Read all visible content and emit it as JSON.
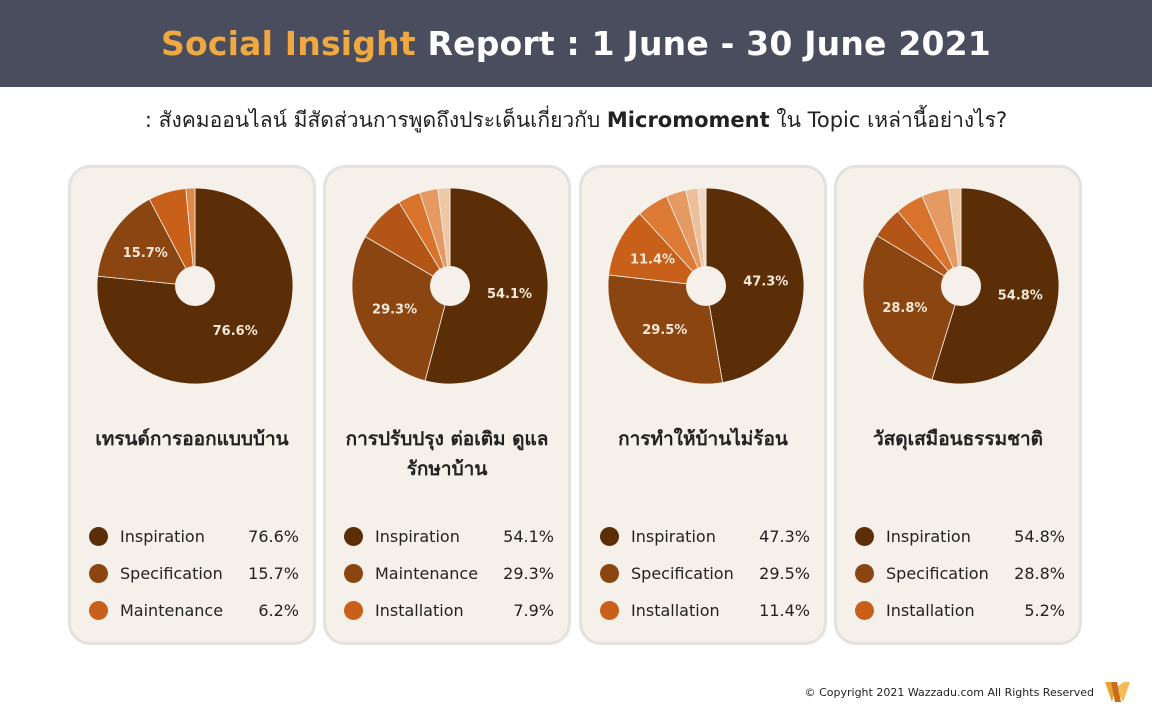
{
  "header": {
    "title_accent": "Social Insight",
    "title_rest": " Report : 1 June - 30 June 2021"
  },
  "subtitle": {
    "prefix": ": สังคมออนไลน์ มีสัดส่วนการพูดถึงประเด็นเกี่ยวกับ ",
    "bold": "Micromoment",
    "suffix": " ใน Topic เหล่านี้อย่างไร?"
  },
  "colors": {
    "header_bg": "#4a4d5e",
    "accent": "#f0a940",
    "card_bg": "#f6f0ea",
    "inspiration": "#5c2e07",
    "series2": "#8b4511",
    "series3": "#c8601a"
  },
  "chart_data": [
    {
      "type": "pie",
      "title": "เทรนด์การออกแบบบ้าน",
      "slices": [
        {
          "name": "Inspiration",
          "value": 76.6,
          "label": "76.6%",
          "color": "#5c2e07"
        },
        {
          "name": "Specification",
          "value": 15.7,
          "label": "15.7%",
          "color": "#8b4511"
        },
        {
          "name": "Maintenance",
          "value": 6.2,
          "label": "",
          "color": "#c8601a"
        },
        {
          "name": "",
          "value": 1.5,
          "label": "",
          "color": "#e0884a"
        }
      ],
      "legend": [
        {
          "name": "Inspiration",
          "value": "76.6%",
          "color": "#5c2e07"
        },
        {
          "name": "Specification",
          "value": "15.7%",
          "color": "#8b4511"
        },
        {
          "name": "Maintenance",
          "value": "6.2%",
          "color": "#c8601a"
        }
      ]
    },
    {
      "type": "pie",
      "title": "การปรับปรุง ต่อเติม ดูแลรักษาบ้าน",
      "slices": [
        {
          "name": "Inspiration",
          "value": 54.1,
          "label": "54.1%",
          "color": "#5c2e07"
        },
        {
          "name": "Maintenance",
          "value": 29.3,
          "label": "29.3%",
          "color": "#8b4511"
        },
        {
          "name": "Installation",
          "value": 7.9,
          "label": "",
          "color": "#b25516"
        },
        {
          "name": "",
          "value": 3.7,
          "label": "",
          "color": "#d9722a"
        },
        {
          "name": "",
          "value": 3.0,
          "label": "",
          "color": "#e59a63"
        },
        {
          "name": "",
          "value": 2.0,
          "label": "",
          "color": "#eec7a6"
        }
      ],
      "legend": [
        {
          "name": "Inspiration",
          "value": "54.1%",
          "color": "#5c2e07"
        },
        {
          "name": "Maintenance",
          "value": "29.3%",
          "color": "#8b4511"
        },
        {
          "name": "Installation",
          "value": "7.9%",
          "color": "#c8601a"
        }
      ]
    },
    {
      "type": "pie",
      "title": "การทำให้บ้านไม่ร้อน",
      "slices": [
        {
          "name": "Inspiration",
          "value": 47.3,
          "label": "47.3%",
          "color": "#5c2e07"
        },
        {
          "name": "Specification",
          "value": 29.5,
          "label": "29.5%",
          "color": "#8b4511"
        },
        {
          "name": "Installation",
          "value": 11.4,
          "label": "11.4%",
          "color": "#c8601a"
        },
        {
          "name": "",
          "value": 5.2,
          "label": "",
          "color": "#dd7b35"
        },
        {
          "name": "",
          "value": 3.3,
          "label": "",
          "color": "#e59a63"
        },
        {
          "name": "",
          "value": 2.0,
          "label": "",
          "color": "#edc09b"
        },
        {
          "name": "",
          "value": 1.3,
          "label": "",
          "color": "#f3d9c4"
        }
      ],
      "legend": [
        {
          "name": "Inspiration",
          "value": "47.3%",
          "color": "#5c2e07"
        },
        {
          "name": "Specification",
          "value": "29.5%",
          "color": "#8b4511"
        },
        {
          "name": "Installation",
          "value": "11.4%",
          "color": "#c8601a"
        }
      ]
    },
    {
      "type": "pie",
      "title": "วัสดุเสมือนธรรมชาติ",
      "slices": [
        {
          "name": "Inspiration",
          "value": 54.8,
          "label": "54.8%",
          "color": "#5c2e07"
        },
        {
          "name": "Specification",
          "value": 28.8,
          "label": "28.8%",
          "color": "#8b4511"
        },
        {
          "name": "Installation",
          "value": 5.2,
          "label": "",
          "color": "#b25516"
        },
        {
          "name": "",
          "value": 4.7,
          "label": "",
          "color": "#d9722a"
        },
        {
          "name": "",
          "value": 4.5,
          "label": "",
          "color": "#e59a63"
        },
        {
          "name": "",
          "value": 2.0,
          "label": "",
          "color": "#eec7a6"
        }
      ],
      "legend": [
        {
          "name": "Inspiration",
          "value": "54.8%",
          "color": "#5c2e07"
        },
        {
          "name": "Specification",
          "value": "28.8%",
          "color": "#8b4511"
        },
        {
          "name": "Installation",
          "value": "5.2%",
          "color": "#c8601a"
        }
      ]
    }
  ],
  "footer": {
    "copyright": "© Copyright 2021 Wazzadu.com All Rights Reserved",
    "logo_icon": "wazzadu-w-logo-icon"
  }
}
